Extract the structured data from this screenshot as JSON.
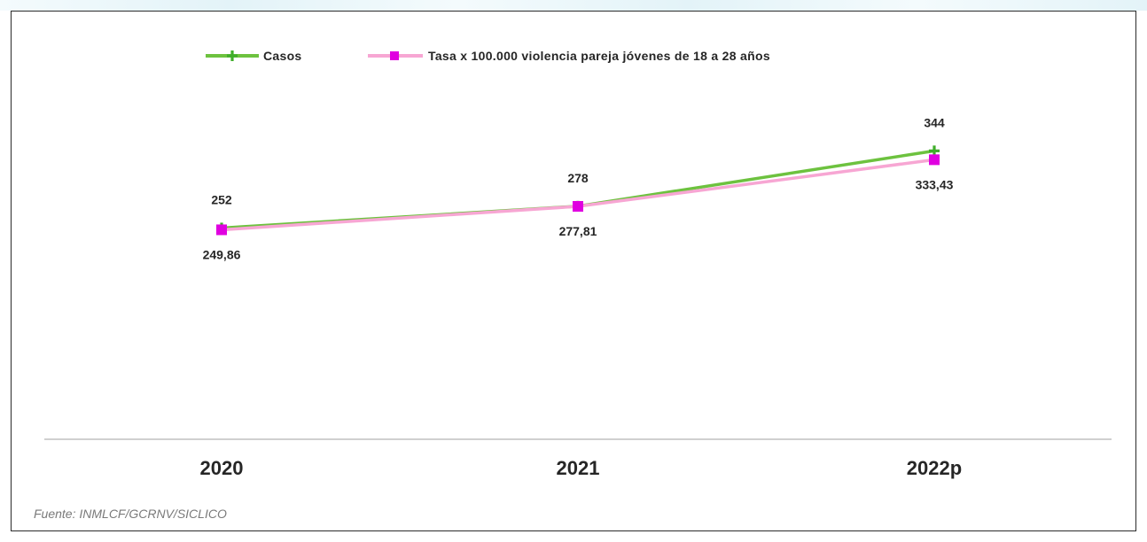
{
  "chart_data": {
    "type": "line",
    "categories": [
      "2020",
      "2021",
      "2022p"
    ],
    "series": [
      {
        "name": "Casos",
        "values": [
          252,
          278,
          344
        ],
        "labels": [
          "252",
          "278",
          "344"
        ],
        "color": "#6dc23f",
        "marker_color": "#3fae2a",
        "marker": "plus"
      },
      {
        "name": "Tasa x 100.000 violencia pareja jóvenes de 18 a 28 años",
        "values": [
          249.86,
          277.81,
          333.43
        ],
        "labels": [
          "249,86",
          "277,81",
          "333,43"
        ],
        "color": "#f7a6d3",
        "marker_color": "#e000e0",
        "marker": "square"
      }
    ],
    "title": "",
    "xlabel": "",
    "ylabel": "",
    "ylim": [
      0,
      450
    ],
    "grid": false,
    "legend_position": "top-center"
  },
  "source": "Fuente: INMLCF/GCRNV/SICLICO"
}
